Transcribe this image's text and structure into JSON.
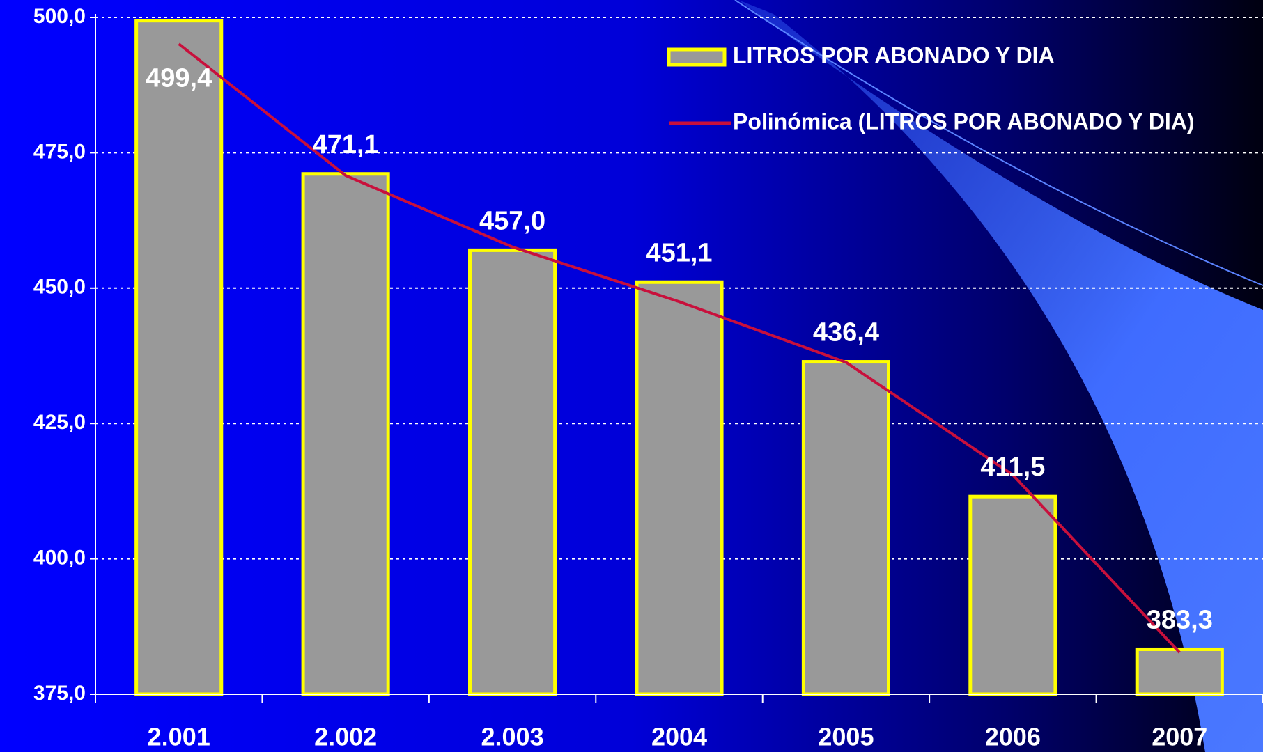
{
  "chart_data": {
    "type": "bar",
    "categories": [
      "2.001",
      "2.002",
      "2.003",
      "2004",
      "2005",
      "2006",
      "2007"
    ],
    "series": [
      {
        "name": "LITROS POR ABONADO Y DIA",
        "type": "bar",
        "color": "#999999",
        "edgecolor": "#ffff00",
        "values": [
          499.4,
          471.1,
          457.0,
          451.1,
          436.4,
          411.5,
          383.3
        ],
        "value_labels": [
          "499,4",
          "471,1",
          "457,0",
          "451,1",
          "436,4",
          "411,5",
          "383,3"
        ]
      },
      {
        "name": "Polinómica (LITROS POR ABONADO Y DIA)",
        "type": "line",
        "color": "#c8103c",
        "values": [
          495.1,
          470.8,
          457.6,
          447.5,
          436.3,
          415.5,
          382.7
        ]
      }
    ],
    "ylim": [
      375,
      500
    ],
    "yticks": [
      {
        "value": 375,
        "label": "375,0"
      },
      {
        "value": 400,
        "label": "400,0"
      },
      {
        "value": 425,
        "label": "425,0"
      },
      {
        "value": 450,
        "label": "450,0"
      },
      {
        "value": 475,
        "label": "475,0"
      },
      {
        "value": 500,
        "label": "500,0"
      }
    ],
    "grid": true,
    "legend": "upper right"
  }
}
